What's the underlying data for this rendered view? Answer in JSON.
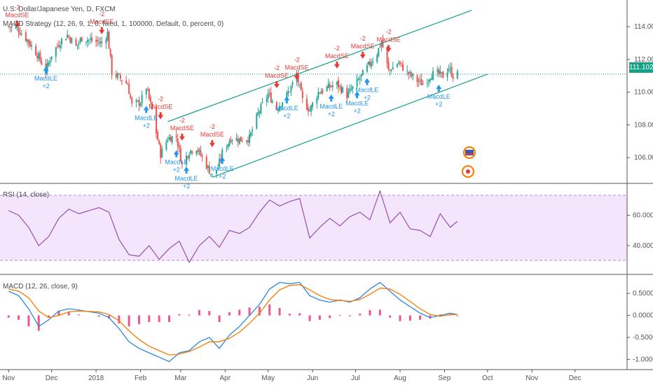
{
  "header": {
    "symbol_title": "U.S. Dollar/Japanese Yen, D, FXCM",
    "strategy_label": "MACD Strategy (12, 26, 9, 1, 0, fixed, 1, 100000, Default, 0, percent, 0)",
    "rsi_label": "RSI (14, close)",
    "macd_label": "MACD (12, 26, close, 9)",
    "last_price": "111.102"
  },
  "colors": {
    "bull": "#26a69a",
    "bear": "#ef5350",
    "channel": "#16a085",
    "rsi_line": "#8e44ad",
    "rsi_band": "#f3e5fb",
    "macd_line": "#2e86de",
    "signal_line": "#f57c00",
    "hist": "#e91e63",
    "long_marker": "#2196f3",
    "short_marker": "#e53935"
  },
  "icons": [
    "flag-us-icon",
    "flag-jp-icon"
  ],
  "chart_data": [
    {
      "type": "candlestick",
      "title": "U.S. Dollar/Japanese Yen, D, FXCM",
      "y_ticks": [
        "114.000",
        "112.000",
        "110.000",
        "108.000",
        "106.000"
      ],
      "x_ticks": [
        "Nov",
        "Dec",
        "2018",
        "Feb",
        "Mar",
        "Apr",
        "May",
        "Jun",
        "Jul",
        "Aug",
        "Sep",
        "Oct",
        "Nov",
        "Dec"
      ],
      "ylim": [
        104.6,
        115.2
      ],
      "last_price": 111.102,
      "close_path": [
        [
          "2017-11-01",
          114.0
        ],
        [
          "2017-11-07",
          113.9
        ],
        [
          "2017-11-14",
          113.2
        ],
        [
          "2017-11-21",
          112.3
        ],
        [
          "2017-11-27",
          111.3
        ],
        [
          "2017-12-01",
          112.3
        ],
        [
          "2017-12-07",
          113.1
        ],
        [
          "2017-12-12",
          113.5
        ],
        [
          "2017-12-18",
          112.8
        ],
        [
          "2017-12-22",
          113.3
        ],
        [
          "2018-01-05",
          113.0
        ],
        [
          "2018-01-09",
          113.6
        ],
        [
          "2018-01-12",
          111.2
        ],
        [
          "2018-01-17",
          110.9
        ],
        [
          "2018-01-23",
          110.5
        ],
        [
          "2018-01-26",
          109.2
        ],
        [
          "2018-02-01",
          109.4
        ],
        [
          "2018-02-05",
          110.3
        ],
        [
          "2018-02-09",
          108.9
        ],
        [
          "2018-02-15",
          106.2
        ],
        [
          "2018-02-20",
          107.2
        ],
        [
          "2018-02-26",
          107.3
        ],
        [
          "2018-03-02",
          105.6
        ],
        [
          "2018-03-07",
          106.4
        ],
        [
          "2018-03-12",
          106.6
        ],
        [
          "2018-03-16",
          106.0
        ],
        [
          "2018-03-23",
          104.9
        ],
        [
          "2018-03-27",
          105.4
        ],
        [
          "2018-03-30",
          106.3
        ],
        [
          "2018-04-05",
          107.2
        ],
        [
          "2018-04-12",
          107.1
        ],
        [
          "2018-04-18",
          107.2
        ],
        [
          "2018-04-24",
          108.7
        ],
        [
          "2018-05-01",
          109.9
        ],
        [
          "2018-05-07",
          109.0
        ],
        [
          "2018-05-14",
          109.8
        ],
        [
          "2018-05-21",
          111.0
        ],
        [
          "2018-05-25",
          109.5
        ],
        [
          "2018-05-30",
          108.9
        ],
        [
          "2018-06-05",
          110.0
        ],
        [
          "2018-06-12",
          110.3
        ],
        [
          "2018-06-18",
          110.5
        ],
        [
          "2018-06-25",
          109.8
        ],
        [
          "2018-07-02",
          110.6
        ],
        [
          "2018-07-09",
          111.5
        ],
        [
          "2018-07-16",
          112.4
        ],
        [
          "2018-07-19",
          113.1
        ],
        [
          "2018-07-24",
          111.3
        ],
        [
          "2018-07-31",
          111.8
        ],
        [
          "2018-08-06",
          111.2
        ],
        [
          "2018-08-13",
          110.7
        ],
        [
          "2018-08-17",
          110.5
        ],
        [
          "2018-08-23",
          111.1
        ],
        [
          "2018-08-28",
          111.1
        ],
        [
          "2018-08-31",
          111.0
        ],
        [
          "2018-09-04",
          111.5
        ],
        [
          "2018-09-07",
          111.0
        ],
        [
          "2018-09-10",
          111.1
        ]
      ],
      "channel": {
        "upper": [
          [
            "2018-02-20",
            108.2
          ],
          [
            "2018-09-20",
            115.0
          ]
        ],
        "lower": [
          [
            "2018-03-23",
            104.8
          ],
          [
            "2018-10-01",
            111.1
          ]
        ]
      },
      "signals": [
        {
          "label": "MacdLE",
          "qty": "+2",
          "date": "2017-11-27",
          "price": 111.3
        },
        {
          "label": "MacdSE",
          "qty": "-2",
          "date": "2017-11-07",
          "price": 114.2
        },
        {
          "label": "MacdSE",
          "qty": "-2",
          "date": "2018-01-05",
          "price": 113.8
        },
        {
          "label": "MacdLE",
          "qty": "+2",
          "date": "2018-02-05",
          "price": 108.9
        },
        {
          "label": "MacdSE",
          "qty": "-2",
          "date": "2018-02-15",
          "price": 108.6
        },
        {
          "label": "MacdSE",
          "qty": "-2",
          "date": "2018-03-02",
          "price": 107.3
        },
        {
          "label": "MacdLE",
          "qty": "+2",
          "date": "2018-02-26",
          "price": 106.2
        },
        {
          "label": "MacdLE",
          "qty": "+2",
          "date": "2018-03-05",
          "price": 105.2
        },
        {
          "label": "MacdSE",
          "qty": "-2",
          "date": "2018-03-23",
          "price": 106.9
        },
        {
          "label": "MacdLE",
          "qty": "+2",
          "date": "2018-03-30",
          "price": 105.8
        },
        {
          "label": "MacdSE",
          "qty": "-2",
          "date": "2018-05-07",
          "price": 110.5
        },
        {
          "label": "MacdLE",
          "qty": "+2",
          "date": "2018-05-14",
          "price": 109.5
        },
        {
          "label": "MacdSE",
          "qty": "-2",
          "date": "2018-05-21",
          "price": 111.0
        },
        {
          "label": "MacdLE",
          "qty": "+2",
          "date": "2018-06-14",
          "price": 109.6
        },
        {
          "label": "MacdSE",
          "qty": "-2",
          "date": "2018-06-18",
          "price": 111.7
        },
        {
          "label": "MacdLE",
          "qty": "+2",
          "date": "2018-07-02",
          "price": 109.8
        },
        {
          "label": "MacdSE",
          "qty": "-2",
          "date": "2018-07-06",
          "price": 112.3
        },
        {
          "label": "MacdLE",
          "qty": "+2",
          "date": "2018-07-09",
          "price": 110.6
        },
        {
          "label": "MacdSE",
          "qty": "-2",
          "date": "2018-07-24",
          "price": 112.7
        },
        {
          "label": "MacdLE",
          "qty": "+2",
          "date": "2018-08-28",
          "price": 110.2
        }
      ]
    },
    {
      "type": "line",
      "title": "RSI (14, close)",
      "y_ticks": [
        "60.0000",
        "40.0000"
      ],
      "ylim": [
        22,
        80
      ],
      "band": [
        30,
        70
      ],
      "series": [
        {
          "name": "RSI (14, close)",
          "x": [
            "2017-11-01",
            "2017-11-08",
            "2017-11-15",
            "2017-11-22",
            "2017-11-29",
            "2017-12-06",
            "2017-12-13",
            "2017-12-20",
            "2018-01-03",
            "2018-01-10",
            "2018-01-17",
            "2018-01-24",
            "2018-01-31",
            "2018-02-07",
            "2018-02-14",
            "2018-02-21",
            "2018-02-28",
            "2018-03-07",
            "2018-03-14",
            "2018-03-21",
            "2018-03-28",
            "2018-04-04",
            "2018-04-11",
            "2018-04-18",
            "2018-04-25",
            "2018-05-02",
            "2018-05-09",
            "2018-05-16",
            "2018-05-23",
            "2018-05-30",
            "2018-06-06",
            "2018-06-13",
            "2018-06-20",
            "2018-06-27",
            "2018-07-04",
            "2018-07-11",
            "2018-07-18",
            "2018-07-25",
            "2018-08-01",
            "2018-08-08",
            "2018-08-15",
            "2018-08-22",
            "2018-08-29",
            "2018-09-05",
            "2018-09-10"
          ],
          "values": [
            63,
            60,
            52,
            40,
            46,
            58,
            64,
            61,
            65,
            62,
            44,
            34,
            33,
            40,
            31,
            38,
            43,
            29,
            40,
            46,
            39,
            50,
            48,
            52,
            62,
            70,
            66,
            69,
            71,
            45,
            52,
            58,
            53,
            59,
            62,
            57,
            76,
            55,
            62,
            51,
            50,
            46,
            61,
            52,
            56
          ]
        }
      ]
    },
    {
      "type": "line",
      "title": "MACD (12, 26, close, 9)",
      "y_ticks": [
        "0.5000",
        "0.0000",
        "-0.5000",
        "-1.0000"
      ],
      "ylim": [
        -1.2,
        0.9
      ],
      "series": [
        {
          "name": "MACD",
          "x": [
            "2017-11-01",
            "2017-11-08",
            "2017-11-15",
            "2017-11-22",
            "2017-11-29",
            "2017-12-06",
            "2017-12-13",
            "2017-12-20",
            "2018-01-03",
            "2018-01-10",
            "2018-01-17",
            "2018-01-24",
            "2018-01-31",
            "2018-02-07",
            "2018-02-14",
            "2018-02-21",
            "2018-02-28",
            "2018-03-07",
            "2018-03-14",
            "2018-03-21",
            "2018-03-28",
            "2018-04-04",
            "2018-04-11",
            "2018-04-18",
            "2018-04-25",
            "2018-05-02",
            "2018-05-09",
            "2018-05-16",
            "2018-05-23",
            "2018-05-30",
            "2018-06-06",
            "2018-06-13",
            "2018-06-20",
            "2018-06-27",
            "2018-07-04",
            "2018-07-11",
            "2018-07-18",
            "2018-07-25",
            "2018-08-01",
            "2018-08-08",
            "2018-08-15",
            "2018-08-22",
            "2018-08-29",
            "2018-09-05",
            "2018-09-10"
          ],
          "values": [
            0.55,
            0.45,
            0.15,
            -0.25,
            -0.1,
            0.1,
            0.15,
            0.12,
            0.05,
            -0.05,
            -0.3,
            -0.6,
            -0.75,
            -0.85,
            -0.95,
            -1.05,
            -0.85,
            -0.8,
            -0.6,
            -0.5,
            -0.75,
            -0.45,
            -0.25,
            0.0,
            0.25,
            0.6,
            0.75,
            0.72,
            0.75,
            0.45,
            0.35,
            0.3,
            0.35,
            0.3,
            0.4,
            0.6,
            0.75,
            0.55,
            0.35,
            0.2,
            0.05,
            -0.05,
            0.0,
            0.05,
            0.02
          ]
        },
        {
          "name": "Signal",
          "x": [
            "2017-11-01",
            "2017-11-08",
            "2017-11-15",
            "2017-11-22",
            "2017-11-29",
            "2017-12-06",
            "2017-12-13",
            "2017-12-20",
            "2018-01-03",
            "2018-01-10",
            "2018-01-17",
            "2018-01-24",
            "2018-01-31",
            "2018-02-07",
            "2018-02-14",
            "2018-02-21",
            "2018-02-28",
            "2018-03-07",
            "2018-03-14",
            "2018-03-21",
            "2018-03-28",
            "2018-04-04",
            "2018-04-11",
            "2018-04-18",
            "2018-04-25",
            "2018-05-02",
            "2018-05-09",
            "2018-05-16",
            "2018-05-23",
            "2018-05-30",
            "2018-06-06",
            "2018-06-13",
            "2018-06-20",
            "2018-06-27",
            "2018-07-04",
            "2018-07-11",
            "2018-07-18",
            "2018-07-25",
            "2018-08-01",
            "2018-08-08",
            "2018-08-15",
            "2018-08-22",
            "2018-08-29",
            "2018-09-05",
            "2018-09-10"
          ],
          "values": [
            0.6,
            0.55,
            0.4,
            0.1,
            -0.05,
            0.0,
            0.08,
            0.1,
            0.08,
            0.02,
            -0.12,
            -0.35,
            -0.55,
            -0.7,
            -0.8,
            -0.9,
            -0.88,
            -0.82,
            -0.72,
            -0.6,
            -0.6,
            -0.52,
            -0.38,
            -0.18,
            0.05,
            0.35,
            0.58,
            0.68,
            0.7,
            0.58,
            0.45,
            0.36,
            0.34,
            0.32,
            0.36,
            0.48,
            0.62,
            0.6,
            0.48,
            0.32,
            0.15,
            0.02,
            -0.02,
            0.02,
            0.02
          ]
        }
      ]
    }
  ]
}
